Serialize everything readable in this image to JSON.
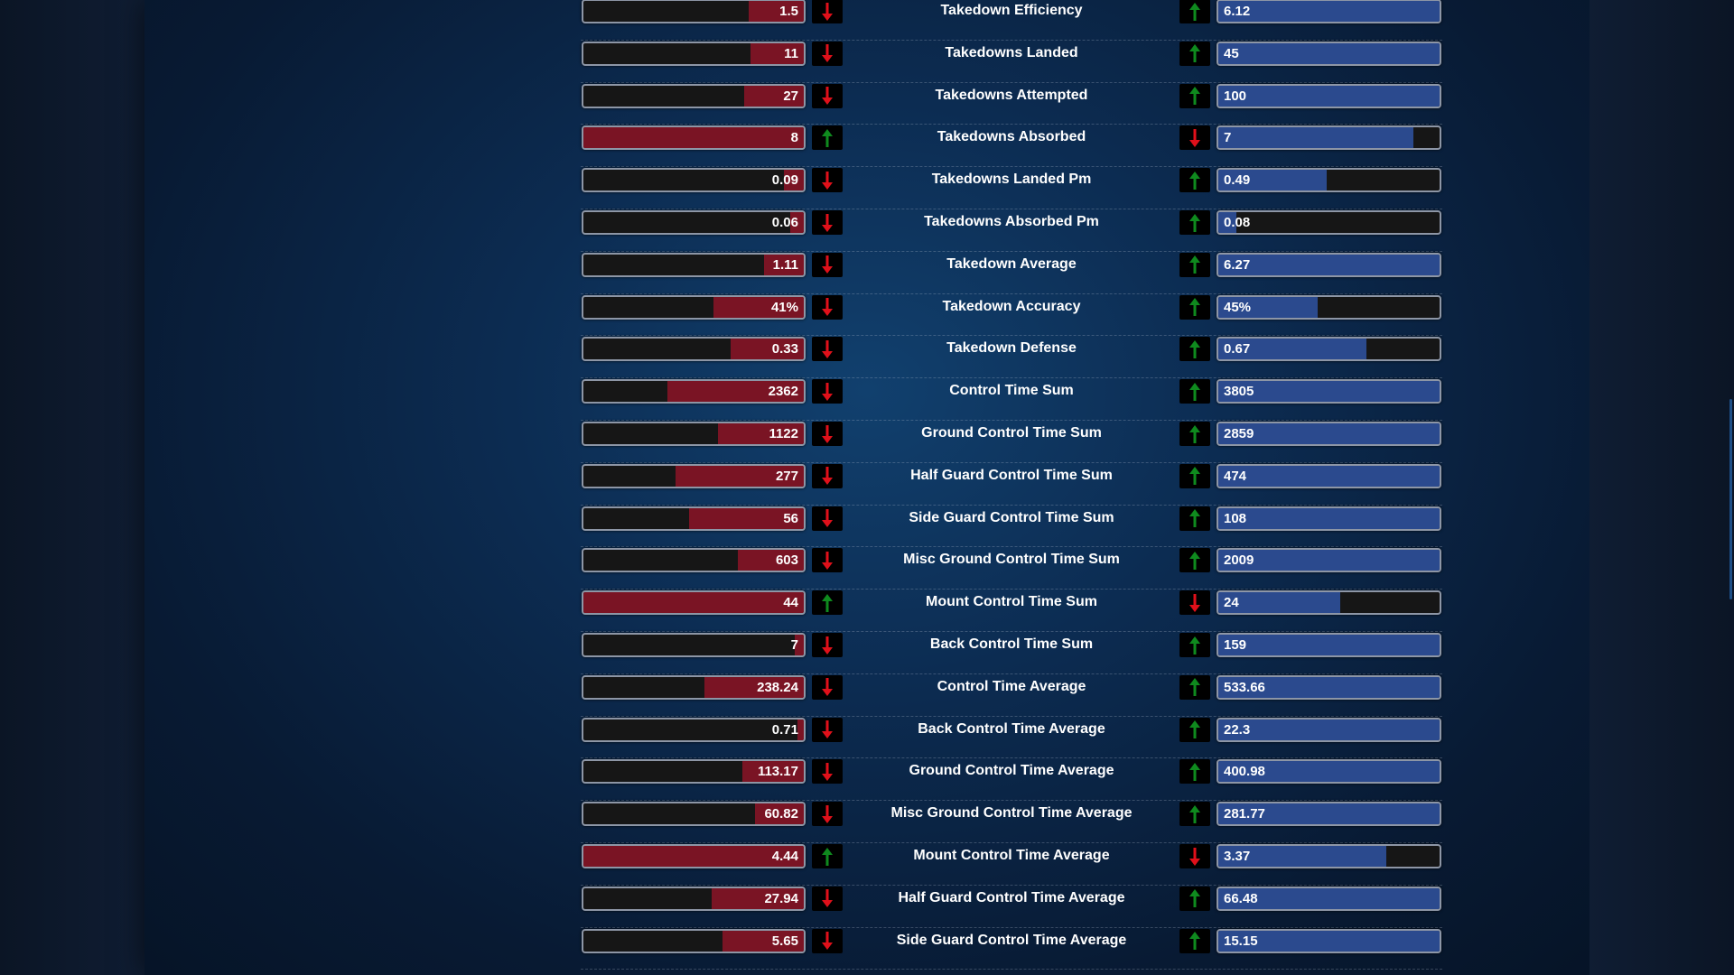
{
  "colors": {
    "left_fill": "#7a1424",
    "right_fill": "#2b4a8e",
    "bar_empty": "#161616",
    "arrow_up": "#0f8a1e",
    "arrow_down": "#e0101a"
  },
  "rows": [
    {
      "label": "Takedown Efficiency",
      "left": {
        "value": "1.5",
        "fill": 0.25,
        "arrow": "down"
      },
      "right": {
        "value": "6.12",
        "fill": 1.0,
        "arrow": "up"
      }
    },
    {
      "label": "Takedowns Landed",
      "left": {
        "value": "11",
        "fill": 0.24,
        "arrow": "down"
      },
      "right": {
        "value": "45",
        "fill": 1.0,
        "arrow": "up"
      }
    },
    {
      "label": "Takedowns Attempted",
      "left": {
        "value": "27",
        "fill": 0.27,
        "arrow": "down"
      },
      "right": {
        "value": "100",
        "fill": 1.0,
        "arrow": "up"
      }
    },
    {
      "label": "Takedowns Absorbed",
      "left": {
        "value": "8",
        "fill": 1.0,
        "arrow": "up"
      },
      "right": {
        "value": "7",
        "fill": 0.88,
        "arrow": "down"
      }
    },
    {
      "label": "Takedowns Landed Pm",
      "left": {
        "value": "0.09",
        "fill": 0.09,
        "arrow": "down"
      },
      "right": {
        "value": "0.49",
        "fill": 0.49,
        "arrow": "up"
      }
    },
    {
      "label": "Takedowns Absorbed Pm",
      "left": {
        "value": "0.06",
        "fill": 0.06,
        "arrow": "down"
      },
      "right": {
        "value": "0.08",
        "fill": 0.08,
        "arrow": "up"
      }
    },
    {
      "label": "Takedown Average",
      "left": {
        "value": "1.11",
        "fill": 0.18,
        "arrow": "down"
      },
      "right": {
        "value": "6.27",
        "fill": 1.0,
        "arrow": "up"
      }
    },
    {
      "label": "Takedown Accuracy",
      "left": {
        "value": "41%",
        "fill": 0.41,
        "arrow": "down"
      },
      "right": {
        "value": "45%",
        "fill": 0.45,
        "arrow": "up"
      }
    },
    {
      "label": "Takedown Defense",
      "left": {
        "value": "0.33",
        "fill": 0.33,
        "arrow": "down"
      },
      "right": {
        "value": "0.67",
        "fill": 0.67,
        "arrow": "up"
      }
    },
    {
      "label": "Control Time Sum",
      "left": {
        "value": "2362",
        "fill": 0.62,
        "arrow": "down"
      },
      "right": {
        "value": "3805",
        "fill": 1.0,
        "arrow": "up"
      }
    },
    {
      "label": "Ground Control Time Sum",
      "left": {
        "value": "1122",
        "fill": 0.39,
        "arrow": "down"
      },
      "right": {
        "value": "2859",
        "fill": 1.0,
        "arrow": "up"
      }
    },
    {
      "label": "Half Guard Control Time Sum",
      "left": {
        "value": "277",
        "fill": 0.58,
        "arrow": "down"
      },
      "right": {
        "value": "474",
        "fill": 1.0,
        "arrow": "up"
      }
    },
    {
      "label": "Side Guard Control Time Sum",
      "left": {
        "value": "56",
        "fill": 0.52,
        "arrow": "down"
      },
      "right": {
        "value": "108",
        "fill": 1.0,
        "arrow": "up"
      }
    },
    {
      "label": "Misc Ground Control Time Sum",
      "left": {
        "value": "603",
        "fill": 0.3,
        "arrow": "down"
      },
      "right": {
        "value": "2009",
        "fill": 1.0,
        "arrow": "up"
      }
    },
    {
      "label": "Mount Control Time Sum",
      "left": {
        "value": "44",
        "fill": 1.0,
        "arrow": "up"
      },
      "right": {
        "value": "24",
        "fill": 0.55,
        "arrow": "down"
      }
    },
    {
      "label": "Back Control Time Sum",
      "left": {
        "value": "7",
        "fill": 0.04,
        "arrow": "down"
      },
      "right": {
        "value": "159",
        "fill": 1.0,
        "arrow": "up"
      }
    },
    {
      "label": "Control Time Average",
      "left": {
        "value": "238.24",
        "fill": 0.45,
        "arrow": "down"
      },
      "right": {
        "value": "533.66",
        "fill": 1.0,
        "arrow": "up"
      }
    },
    {
      "label": "Back Control Time Average",
      "left": {
        "value": "0.71",
        "fill": 0.03,
        "arrow": "down"
      },
      "right": {
        "value": "22.3",
        "fill": 1.0,
        "arrow": "up"
      }
    },
    {
      "label": "Ground Control Time Average",
      "left": {
        "value": "113.17",
        "fill": 0.28,
        "arrow": "down"
      },
      "right": {
        "value": "400.98",
        "fill": 1.0,
        "arrow": "up"
      }
    },
    {
      "label": "Misc Ground Control Time Average",
      "left": {
        "value": "60.82",
        "fill": 0.22,
        "arrow": "down"
      },
      "right": {
        "value": "281.77",
        "fill": 1.0,
        "arrow": "up"
      }
    },
    {
      "label": "Mount Control Time Average",
      "left": {
        "value": "4.44",
        "fill": 1.0,
        "arrow": "up"
      },
      "right": {
        "value": "3.37",
        "fill": 0.76,
        "arrow": "down"
      }
    },
    {
      "label": "Half Guard Control Time Average",
      "left": {
        "value": "27.94",
        "fill": 0.42,
        "arrow": "down"
      },
      "right": {
        "value": "66.48",
        "fill": 1.0,
        "arrow": "up"
      }
    },
    {
      "label": "Side Guard Control Time Average",
      "left": {
        "value": "5.65",
        "fill": 0.37,
        "arrow": "down"
      },
      "right": {
        "value": "15.15",
        "fill": 1.0,
        "arrow": "up"
      }
    }
  ]
}
